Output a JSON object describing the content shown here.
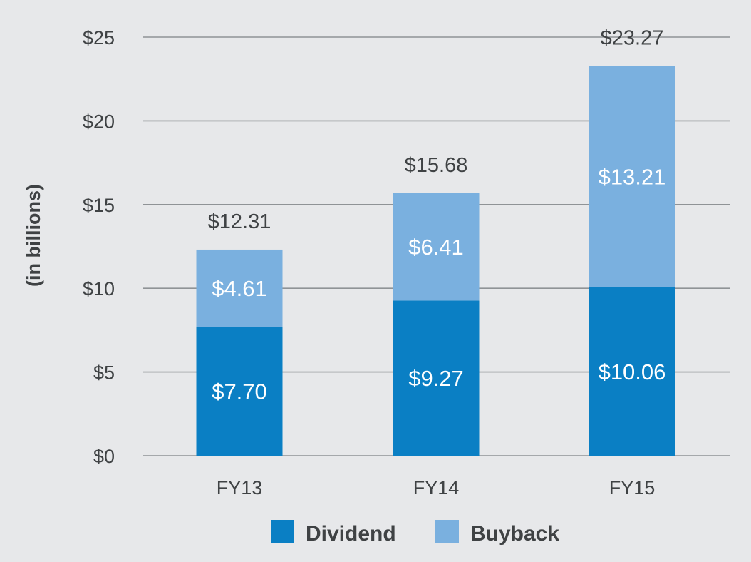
{
  "chart_data": {
    "type": "bar",
    "stacked": true,
    "categories": [
      "FY13",
      "FY14",
      "FY15"
    ],
    "series": [
      {
        "name": "Dividend",
        "color": "#0a7fc4",
        "values": [
          7.7,
          9.27,
          10.06
        ],
        "labels": [
          "$7.70",
          "$9.27",
          "$10.06"
        ]
      },
      {
        "name": "Buyback",
        "color": "#7ab0df",
        "values": [
          4.61,
          6.41,
          13.21
        ],
        "labels": [
          "$4.61",
          "$6.41",
          "$13.21"
        ]
      }
    ],
    "totals": [
      12.31,
      15.68,
      23.27
    ],
    "total_labels": [
      "$12.31",
      "$15.68",
      "$23.27"
    ],
    "ylabel": "(in billions)",
    "ylim": [
      0,
      25
    ],
    "yticks": [
      0,
      5,
      10,
      15,
      20,
      25
    ],
    "ytick_labels": [
      "$0",
      "$5",
      "$10",
      "$15",
      "$20",
      "$25"
    ],
    "grid": true,
    "legend_position": "bottom-center"
  }
}
